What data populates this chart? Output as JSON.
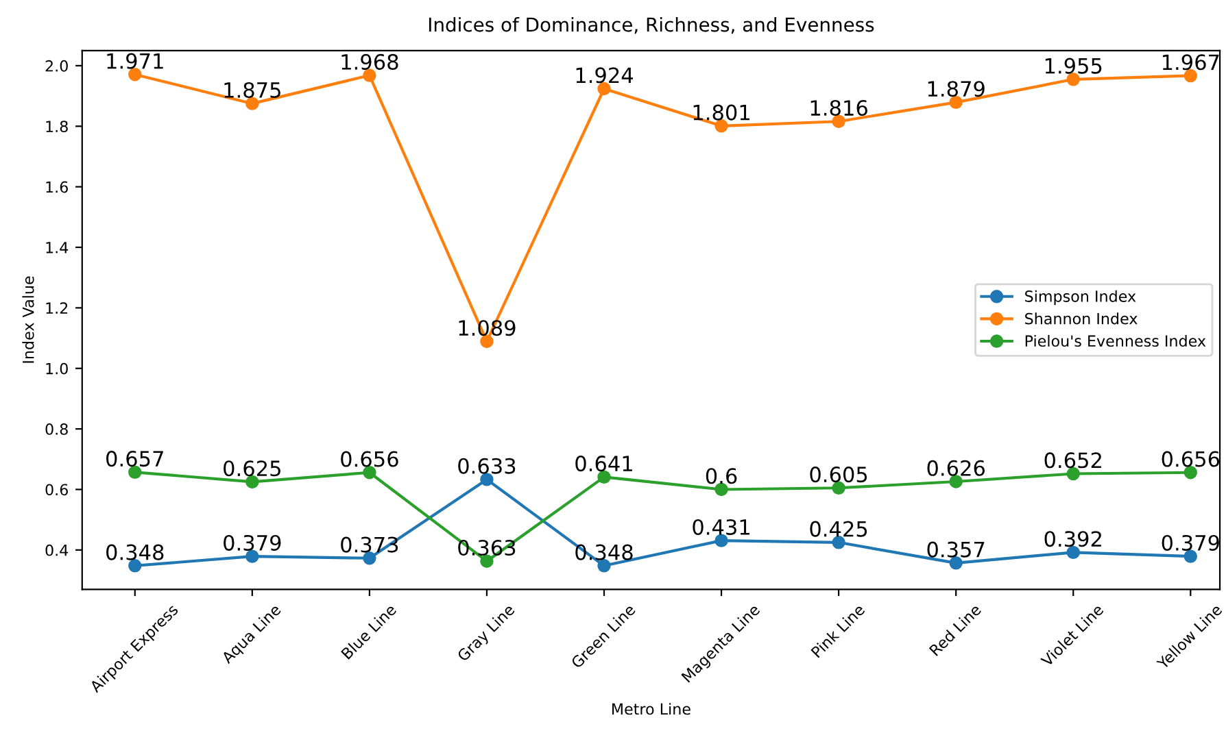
{
  "chart_data": {
    "type": "line",
    "title": "Indices of Dominance, Richness, and Evenness",
    "xlabel": "Metro Line",
    "ylabel": "Index Value",
    "categories": [
      "Airport Express",
      "Aqua Line",
      "Blue Line",
      "Gray Line",
      "Green Line",
      "Magenta Line",
      "Pink Line",
      "Red Line",
      "Violet Line",
      "Yellow Line"
    ],
    "series": [
      {
        "name": "Simpson Index",
        "color": "#1f77b4",
        "values": [
          0.348,
          0.379,
          0.373,
          0.633,
          0.348,
          0.431,
          0.425,
          0.357,
          0.392,
          0.379
        ]
      },
      {
        "name": "Shannon Index",
        "color": "#ff7f0e",
        "values": [
          1.971,
          1.875,
          1.968,
          1.089,
          1.924,
          1.801,
          1.816,
          1.879,
          1.955,
          1.967
        ]
      },
      {
        "name": "Pielou's Evenness Index",
        "color": "#2ca02c",
        "values": [
          0.657,
          0.625,
          0.656,
          0.363,
          0.641,
          0.6,
          0.605,
          0.626,
          0.652,
          0.656
        ]
      }
    ],
    "ylim": [
      0.27,
      2.05
    ],
    "yticks": [
      0.4,
      0.6,
      0.8,
      {
        "value": 1,
        "label": "1.0"
      },
      1.2,
      1.4,
      1.6,
      1.8,
      {
        "value": 2,
        "label": "2.0"
      }
    ],
    "marker": "circle",
    "line_style": "solid",
    "grid": false,
    "legend": "center right",
    "data_labels": true
  }
}
